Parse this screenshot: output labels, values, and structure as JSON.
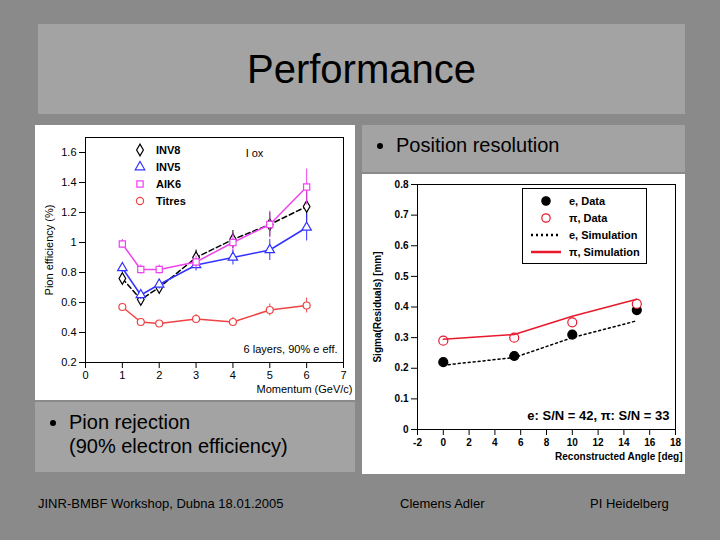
{
  "title": "Performance",
  "bullets": [
    [
      "Position resolution"
    ],
    [
      "Pion rejection",
      "(90% electron efficiency)"
    ]
  ],
  "footer": [
    "JINR-BMBF Workshop, Dubna 18.01.2005",
    "Clemens Adler",
    "PI Heidelberg"
  ],
  "chart_data": [
    {
      "type": "line",
      "x_label": "Momentum (GeV/c)",
      "y_label": "Pion efficiency (%)",
      "annotations": [
        "I ox",
        "6 layers, 90% e eff."
      ],
      "xlim": [
        0,
        7
      ],
      "xticks": [
        0,
        1,
        2,
        3,
        4,
        5,
        6,
        7
      ],
      "ylim": [
        0.2,
        1.7
      ],
      "yticks": [
        0.2,
        0.4,
        0.6,
        0.8,
        1,
        1.2,
        1.4,
        1.6
      ],
      "series": [
        {
          "name": "INV8",
          "color": "#000000",
          "marker": "diamond-open",
          "line_style": "dashed",
          "x": [
            1,
            1.5,
            2,
            3,
            4,
            5,
            6
          ],
          "values": [
            0.76,
            0.62,
            0.7,
            0.9,
            1.02,
            1.12,
            1.24
          ],
          "errors": [
            0.03,
            0.03,
            0.03,
            0.05,
            0.06,
            0.08,
            0.1
          ]
        },
        {
          "name": "INV5",
          "color": "#3333ff",
          "marker": "triangle-open",
          "line_style": "solid",
          "x": [
            1,
            1.5,
            2,
            3,
            4,
            5,
            6
          ],
          "values": [
            0.83,
            0.65,
            0.72,
            0.85,
            0.9,
            0.95,
            1.1
          ],
          "errors": [
            0.03,
            0.03,
            0.03,
            0.04,
            0.05,
            0.07,
            0.09
          ]
        },
        {
          "name": "AIK6",
          "color": "#ee44ee",
          "marker": "square-open",
          "line_style": "solid",
          "x": [
            1,
            1.5,
            2,
            3,
            4,
            5,
            6
          ],
          "values": [
            0.99,
            0.82,
            0.82,
            0.87,
            1.0,
            1.12,
            1.37
          ],
          "errors": [
            0.03,
            0.03,
            0.03,
            0.04,
            0.06,
            0.09,
            0.12
          ]
        },
        {
          "name": "Titres",
          "color": "#ee4444",
          "marker": "circle-open",
          "line_style": "solid",
          "x": [
            1,
            1.5,
            2,
            3,
            4,
            5,
            6
          ],
          "values": [
            0.57,
            0.47,
            0.46,
            0.49,
            0.47,
            0.55,
            0.58
          ],
          "errors": [
            0.02,
            0.02,
            0.02,
            0.03,
            0.03,
            0.04,
            0.05
          ]
        }
      ]
    },
    {
      "type": "scatter",
      "x_label": "Reconstructed Angle [deg]",
      "y_label": "Sigma(Residuals) [mm]",
      "annotations": [
        "e: S/N = 42, π: S/N = 33"
      ],
      "xlim": [
        -2,
        18
      ],
      "xticks": [
        -2,
        0,
        2,
        4,
        6,
        8,
        10,
        12,
        14,
        16,
        18
      ],
      "ylim": [
        0,
        0.8
      ],
      "yticks": [
        0,
        0.1,
        0.2,
        0.3,
        0.4,
        0.5,
        0.6,
        0.7,
        0.8
      ],
      "series": [
        {
          "name": "e, Data",
          "type": "scatter",
          "color": "#000000",
          "marker": "circle",
          "x": [
            0,
            5.5,
            10,
            15
          ],
          "values": [
            0.22,
            0.24,
            0.31,
            0.39
          ]
        },
        {
          "name": "π, Data",
          "type": "scatter",
          "color": "#e8192c",
          "marker": "circle-open",
          "x": [
            0,
            5.5,
            10,
            15
          ],
          "values": [
            0.29,
            0.3,
            0.35,
            0.41
          ]
        },
        {
          "name": "e, Simulation",
          "type": "line",
          "color": "#000000",
          "line_style": "dotted",
          "x": [
            0,
            5.5,
            10,
            15
          ],
          "values": [
            0.21,
            0.235,
            0.3,
            0.355
          ]
        },
        {
          "name": "π, Simulation",
          "type": "line",
          "color": "#e8192c",
          "line_style": "solid",
          "x": [
            0,
            5.5,
            10,
            15
          ],
          "values": [
            0.295,
            0.31,
            0.37,
            0.425
          ]
        }
      ]
    }
  ]
}
